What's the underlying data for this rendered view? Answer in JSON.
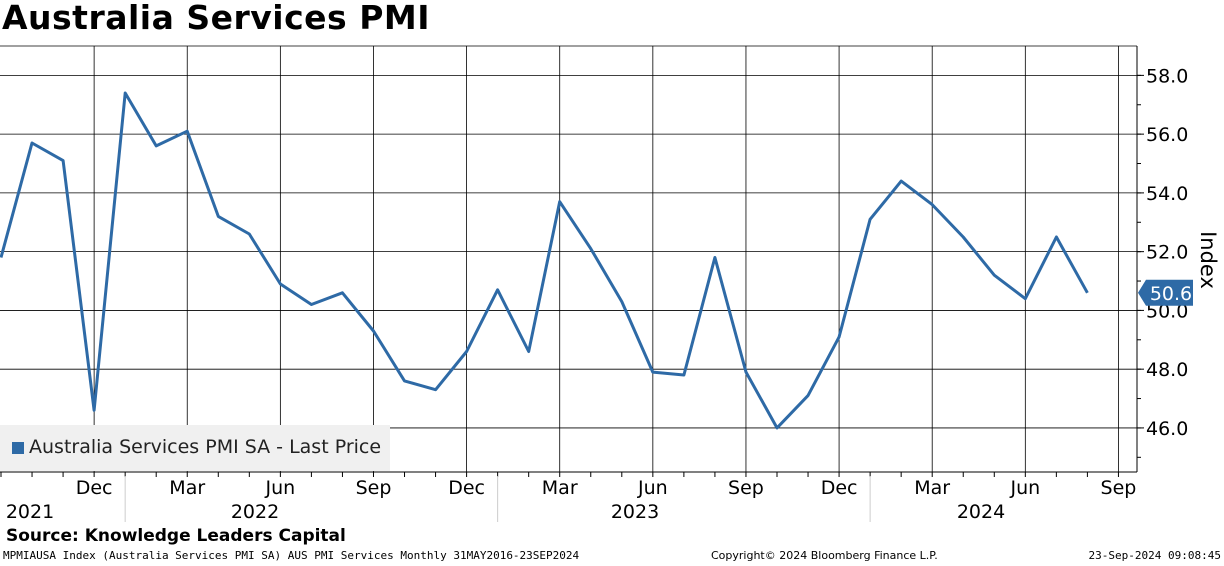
{
  "title": "Australia Services PMI",
  "source": "Source: Knowledge Leaders Capital",
  "footer": {
    "left": "MPMIAUSA Index (Australia Services PMI SA) AUS PMI Services  Monthly 31MAY2016-23SEP2024",
    "middle": "Copyright© 2024 Bloomberg Finance L.P.",
    "right": "23-Sep-2024 09:08:45"
  },
  "colors": {
    "series": "#2e6aa6",
    "last_label_bg": "#2e6aa6",
    "grid": "#000000"
  },
  "chart_data": {
    "type": "line",
    "ylabel": "Index",
    "ylim": [
      44.5,
      59.0
    ],
    "y_ticks": [
      "58.0",
      "56.0",
      "54.0",
      "52.0",
      "50.0",
      "48.0",
      "46.0"
    ],
    "y_tick_values": [
      58,
      56,
      54,
      52,
      50,
      48,
      46
    ],
    "x_month_labels": [
      "Dec",
      "Mar",
      "Jun",
      "Sep",
      "Dec",
      "Mar",
      "Jun",
      "Sep",
      "Dec",
      "Mar",
      "Jun",
      "Sep"
    ],
    "x_month_dates": [
      "2021-12",
      "2022-03",
      "2022-06",
      "2022-09",
      "2022-12",
      "2023-03",
      "2023-06",
      "2023-09",
      "2023-12",
      "2024-03",
      "2024-06",
      "2024-09"
    ],
    "x_year_labels": [
      "2021",
      "2022",
      "2023",
      "2024"
    ],
    "grid": true,
    "legend_position": "bottom-left",
    "series": [
      {
        "name": "Australia Services PMI SA - Last Price",
        "x": [
          "2021-09",
          "2021-10",
          "2021-11",
          "2021-12",
          "2022-01",
          "2022-02",
          "2022-03",
          "2022-04",
          "2022-05",
          "2022-06",
          "2022-07",
          "2022-08",
          "2022-09",
          "2022-10",
          "2022-11",
          "2022-12",
          "2023-01",
          "2023-02",
          "2023-03",
          "2023-04",
          "2023-05",
          "2023-06",
          "2023-07",
          "2023-08",
          "2023-09",
          "2023-10",
          "2023-11",
          "2023-12",
          "2024-01",
          "2024-02",
          "2024-03",
          "2024-04",
          "2024-05",
          "2024-06",
          "2024-07",
          "2024-08",
          "2024-09"
        ],
        "values": [
          51.8,
          55.7,
          55.1,
          46.6,
          57.4,
          55.6,
          56.1,
          53.2,
          52.6,
          50.9,
          50.2,
          50.6,
          49.3,
          47.6,
          47.3,
          48.6,
          50.7,
          48.6,
          53.7,
          52.1,
          50.3,
          47.9,
          47.8,
          51.8,
          47.9,
          46.0,
          47.1,
          49.1,
          53.1,
          54.4,
          53.6,
          52.5,
          51.2,
          50.4,
          52.5,
          50.6,
          null
        ],
        "last_value_label": "50.6"
      }
    ]
  }
}
